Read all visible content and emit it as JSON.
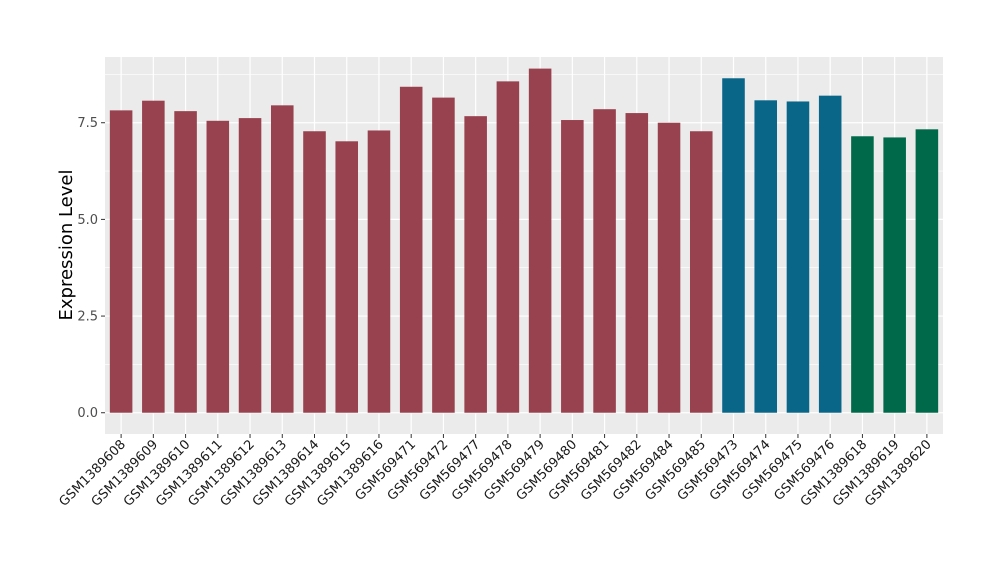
{
  "chart_data": {
    "type": "bar",
    "title": "",
    "xlabel": "",
    "ylabel": "Expression Level",
    "ylim": [
      -0.55,
      9.2
    ],
    "yticks": [
      0.0,
      2.5,
      5.0,
      7.5
    ],
    "ytick_labels": [
      "0.0",
      "2.5",
      "5.0",
      "7.5"
    ],
    "grid": true,
    "panel_background": "#ebebeb",
    "grid_color": "#ffffff",
    "categories": [
      "GSM1389608",
      "GSM1389609",
      "GSM1389610",
      "GSM1389611",
      "GSM1389612",
      "GSM1389613",
      "GSM1389614",
      "GSM1389615",
      "GSM1389616",
      "GSM569471",
      "GSM569472",
      "GSM569477",
      "GSM569478",
      "GSM569479",
      "GSM569480",
      "GSM569481",
      "GSM569482",
      "GSM569484",
      "GSM569485",
      "GSM569473",
      "GSM569474",
      "GSM569475",
      "GSM569476",
      "GSM1389618",
      "GSM1389619",
      "GSM1389620"
    ],
    "values": [
      7.82,
      8.07,
      7.8,
      7.55,
      7.62,
      7.95,
      7.28,
      7.02,
      7.3,
      8.43,
      8.15,
      7.67,
      8.57,
      8.9,
      7.57,
      7.85,
      7.75,
      7.5,
      7.28,
      8.65,
      8.08,
      8.05,
      8.2,
      7.15,
      7.12,
      7.33
    ],
    "bar_colors": [
      "#99424f",
      "#99424f",
      "#99424f",
      "#99424f",
      "#99424f",
      "#99424f",
      "#99424f",
      "#99424f",
      "#99424f",
      "#99424f",
      "#99424f",
      "#99424f",
      "#99424f",
      "#99424f",
      "#99424f",
      "#99424f",
      "#99424f",
      "#99424f",
      "#99424f",
      "#0a6689",
      "#0a6689",
      "#0a6689",
      "#0a6689",
      "#00694a",
      "#00694a",
      "#00694a"
    ]
  }
}
